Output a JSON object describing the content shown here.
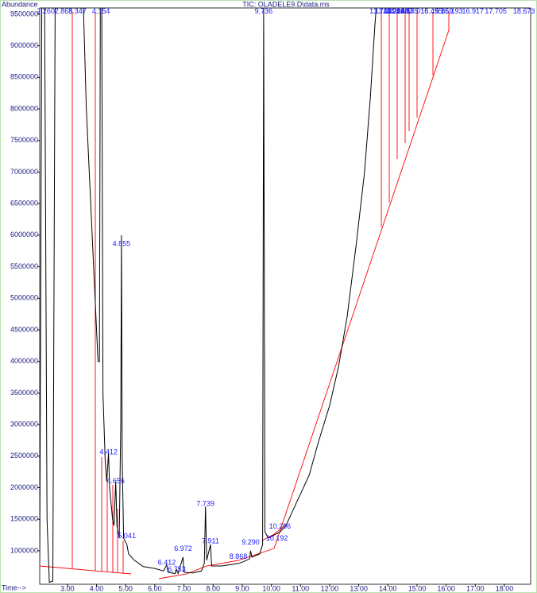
{
  "chart_data": {
    "type": "line",
    "title": "TIC: OLADELE9.D\\data.ms",
    "y_label": "Abundance",
    "x_label": "Time-->",
    "xlim": [
      2.05,
      18.9
    ],
    "ylim": [
      470000,
      9600000
    ],
    "xticks": [
      {
        "value": 3,
        "label": "3.00"
      },
      {
        "value": 4,
        "label": "4.00"
      },
      {
        "value": 5,
        "label": "5.00"
      },
      {
        "value": 6,
        "label": "6.00"
      },
      {
        "value": 7,
        "label": "7.00"
      },
      {
        "value": 8,
        "label": "8.00"
      },
      {
        "value": 9,
        "label": "9.00"
      },
      {
        "value": 10,
        "label": "10.00"
      },
      {
        "value": 11,
        "label": "11.00"
      },
      {
        "value": 12,
        "label": "12.00"
      },
      {
        "value": 13,
        "label": "13.00"
      },
      {
        "value": 14,
        "label": "14.00"
      },
      {
        "value": 15,
        "label": "15.00"
      },
      {
        "value": 16,
        "label": "16.00"
      },
      {
        "value": 17,
        "label": "17.00"
      },
      {
        "value": 18,
        "label": "18.00"
      }
    ],
    "yticks": [
      1000000,
      1500000,
      2000000,
      2500000,
      3000000,
      3500000,
      4000000,
      4500000,
      5000000,
      5500000,
      6000000,
      6500000,
      7000000,
      7500000,
      8000000,
      8500000,
      9000000,
      9500000
    ],
    "series": [
      {
        "name": "TIC",
        "color": "#000000",
        "x": [
          2.05,
          2.12,
          2.22,
          2.3,
          2.38,
          2.5,
          2.58,
          2.62,
          3.55,
          3.65,
          3.8,
          3.95,
          4.05,
          4.1,
          4.13,
          4.18,
          4.22,
          4.3,
          4.35,
          4.41,
          4.45,
          4.55,
          4.6,
          4.66,
          4.7,
          4.78,
          4.83,
          4.855,
          4.88,
          4.93,
          5.04,
          5.1,
          5.3,
          5.6,
          6.0,
          6.3,
          6.41,
          6.45,
          6.7,
          6.75,
          6.8,
          6.97,
          7.0,
          7.3,
          7.6,
          7.7,
          7.739,
          7.78,
          7.911,
          7.95,
          8.3,
          8.87,
          9.0,
          9.25,
          9.29,
          9.33,
          9.6,
          9.7,
          9.736,
          9.78,
          9.9,
          10.1,
          10.3,
          10.5,
          10.8,
          11.0,
          11.3,
          11.6,
          12.0,
          12.3,
          12.6,
          12.9,
          13.2,
          13.4,
          13.55,
          13.6
        ],
        "values": [
          800000,
          9600000,
          9600000,
          1500000,
          500000,
          520000,
          9600000,
          9600000,
          9600000,
          8000000,
          6500000,
          5000000,
          4000000,
          4000000,
          9600000,
          9600000,
          3500000,
          2400000,
          2100000,
          2550000,
          2000000,
          1500000,
          1400000,
          2100000,
          1400000,
          1200000,
          3000000,
          6000000,
          2500000,
          1200000,
          1100000,
          950000,
          850000,
          750000,
          720000,
          680000,
          780000,
          660000,
          640000,
          700000,
          640000,
          900000,
          660000,
          650000,
          680000,
          800000,
          1700000,
          850000,
          1100000,
          760000,
          760000,
          800000,
          820000,
          870000,
          1000000,
          900000,
          950000,
          1100000,
          9600000,
          1300000,
          1200000,
          1250000,
          1300000,
          1400000,
          1700000,
          1900000,
          2200000,
          2700000,
          3300000,
          3900000,
          4700000,
          5800000,
          7000000,
          8200000,
          9300000,
          9600000
        ]
      }
    ],
    "peaks": [
      {
        "x": 2.26,
        "label": "2.260",
        "label_y": 9540000
      },
      {
        "x": 2.868,
        "label": "2.868",
        "label_y": 9540000
      },
      {
        "x": 3.347,
        "label": "3.347",
        "label_y": 9540000
      },
      {
        "x": 4.154,
        "label": "4.154",
        "label_y": 9540000
      },
      {
        "x": 4.412,
        "label": "4.412",
        "label_y": 2560000
      },
      {
        "x": 4.656,
        "label": "4.656",
        "label_y": 2100000
      },
      {
        "x": 4.855,
        "label": "4.855",
        "label_y": 5860000
      },
      {
        "x": 5.041,
        "label": "5.041",
        "label_y": 1230000
      },
      {
        "x": 6.412,
        "label": "6.412",
        "label_y": 810000
      },
      {
        "x": 6.753,
        "label": "6.753",
        "label_y": 700000
      },
      {
        "x": 6.972,
        "label": "6.972",
        "label_y": 1030000
      },
      {
        "x": 7.739,
        "label": "7.739",
        "label_y": 1740000
      },
      {
        "x": 7.911,
        "label": "7.911",
        "label_y": 1150000
      },
      {
        "x": 8.868,
        "label": "8.868",
        "label_y": 900000
      },
      {
        "x": 9.29,
        "label": "9.290",
        "label_y": 1130000
      },
      {
        "x": 9.736,
        "label": "9.736",
        "label_y": 9540000
      },
      {
        "x": 10.192,
        "label": "10.192",
        "label_y": 1190000
      },
      {
        "x": 10.296,
        "label": "10.296",
        "label_y": 1380000
      },
      {
        "x": 13.743,
        "label": "13.743",
        "label_y": 9540000
      },
      {
        "x": 13.922,
        "label": "13.922",
        "label_y": 9540000
      },
      {
        "x": 14.206,
        "label": "14.206",
        "label_y": 9540000
      },
      {
        "x": 14.328,
        "label": "14.328",
        "label_y": 9540000
      },
      {
        "x": 14.487,
        "label": "14.487",
        "label_y": 9540000
      },
      {
        "x": 14.675,
        "label": "14.675",
        "label_y": 9540000
      },
      {
        "x": 15.016,
        "label": "15.016",
        "label_y": 9540000
      },
      {
        "x": 15.495,
        "label": "15.495",
        "label_y": 9540000
      },
      {
        "x": 15.859,
        "label": "15.859",
        "label_y": 9540000
      },
      {
        "x": 16.193,
        "label": "16.193",
        "label_y": 9540000
      },
      {
        "x": 16.917,
        "label": "16.917",
        "label_y": 9540000
      },
      {
        "x": 17.705,
        "label": "17.705",
        "label_y": 9540000
      },
      {
        "x": 18.673,
        "label": "18.673",
        "label_y": 9540000
      }
    ],
    "label_color": "#1a1aff"
  }
}
